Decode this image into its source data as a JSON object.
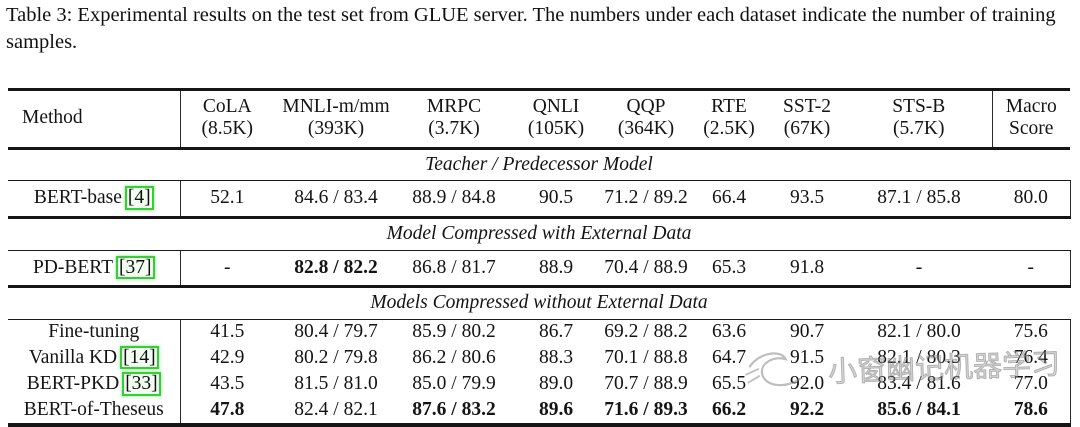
{
  "caption": "Table 3: Experimental results on the test set from GLUE server. The numbers under each dataset indicate the number of training samples.",
  "watermark": {
    "text": "小窗幽记机器学习"
  },
  "colors": {
    "cite_green": "#35cf35",
    "rule_black": "#151515",
    "watermark_gray": "#8a8a8a"
  },
  "table": {
    "columns": [
      {
        "line1": "Method",
        "line2": ""
      },
      {
        "line1": "CoLA",
        "line2": "(8.5K)"
      },
      {
        "line1": "MNLI-m/mm",
        "line2": "(393K)"
      },
      {
        "line1": "MRPC",
        "line2": "(3.7K)"
      },
      {
        "line1": "QNLI",
        "line2": "(105K)"
      },
      {
        "line1": "QQP",
        "line2": "(364K)"
      },
      {
        "line1": "RTE",
        "line2": "(2.5K)"
      },
      {
        "line1": "SST-2",
        "line2": "(67K)"
      },
      {
        "line1": "STS-B",
        "line2": "(5.7K)"
      },
      {
        "line1": "Macro",
        "line2": "Score"
      }
    ],
    "sections": [
      {
        "title": "Teacher / Predecessor Model",
        "rows": [
          {
            "method": "BERT-base",
            "cite": "4",
            "values": [
              {
                "t": "52.1"
              },
              {
                "t": "84.6 / 83.4"
              },
              {
                "t": "88.9 / 84.8"
              },
              {
                "t": "90.5"
              },
              {
                "t": "71.2 / 89.2"
              },
              {
                "t": "66.4"
              },
              {
                "t": "93.5"
              },
              {
                "t": "87.1 / 85.8"
              },
              {
                "t": "80.0"
              }
            ]
          }
        ]
      },
      {
        "title": "Model Compressed with External Data",
        "rows": [
          {
            "method": "PD-BERT",
            "cite": "37",
            "values": [
              {
                "t": "-"
              },
              {
                "t": "82.8 / 82.2",
                "b": true
              },
              {
                "t": "86.8 / 81.7"
              },
              {
                "t": "88.9"
              },
              {
                "t": "70.4 / 88.9"
              },
              {
                "t": "65.3"
              },
              {
                "t": "91.8"
              },
              {
                "t": "-"
              },
              {
                "t": "-"
              }
            ]
          }
        ]
      },
      {
        "title": "Models Compressed without External Data",
        "rows": [
          {
            "method": "Fine-tuning",
            "cite": "",
            "values": [
              {
                "t": "41.5"
              },
              {
                "t": "80.4 / 79.7"
              },
              {
                "t": "85.9 / 80.2"
              },
              {
                "t": "86.7"
              },
              {
                "t": "69.2 / 88.2"
              },
              {
                "t": "63.6"
              },
              {
                "t": "90.7"
              },
              {
                "t": "82.1 / 80.0"
              },
              {
                "t": "75.6"
              }
            ]
          },
          {
            "method": "Vanilla KD",
            "cite": "14",
            "values": [
              {
                "t": "42.9"
              },
              {
                "t": "80.2 / 79.8"
              },
              {
                "t": "86.2 / 80.6"
              },
              {
                "t": "88.3"
              },
              {
                "t": "70.1 / 88.8"
              },
              {
                "t": "64.7"
              },
              {
                "t": "91.5"
              },
              {
                "t": "82.1 / 80.3"
              },
              {
                "t": "76.4"
              }
            ]
          },
          {
            "method": "BERT-PKD",
            "cite": "33",
            "values": [
              {
                "t": "43.5"
              },
              {
                "t": "81.5 / 81.0"
              },
              {
                "t": "85.0 / 79.9"
              },
              {
                "t": "89.0"
              },
              {
                "t": "70.7 / 88.9"
              },
              {
                "t": "65.5"
              },
              {
                "t": "92.0"
              },
              {
                "t": "83.4 / 81.6"
              },
              {
                "t": "77.0"
              }
            ]
          },
          {
            "method": "BERT-of-Theseus",
            "cite": "",
            "values": [
              {
                "t": "47.8",
                "b": true
              },
              {
                "t": "82.4 / 82.1"
              },
              {
                "t": "87.6 / 83.2",
                "b": true
              },
              {
                "t": "89.6",
                "b": true
              },
              {
                "t": "71.6 / 89.3",
                "b": true
              },
              {
                "t": "66.2",
                "b": true
              },
              {
                "t": "92.2",
                "b": true
              },
              {
                "t": "85.6 / 84.1",
                "b": true
              },
              {
                "t": "78.6",
                "b": true
              }
            ]
          }
        ]
      }
    ]
  }
}
